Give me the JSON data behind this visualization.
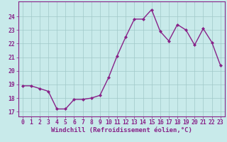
{
  "x": [
    0,
    1,
    2,
    3,
    4,
    5,
    6,
    7,
    8,
    9,
    10,
    11,
    12,
    13,
    14,
    15,
    16,
    17,
    18,
    19,
    20,
    21,
    22,
    23
  ],
  "y": [
    18.9,
    18.9,
    18.7,
    18.5,
    17.2,
    17.2,
    17.9,
    17.9,
    18.0,
    18.2,
    19.5,
    21.1,
    22.5,
    23.8,
    23.8,
    24.5,
    22.9,
    22.2,
    23.4,
    23.0,
    21.9,
    23.1,
    22.1,
    20.4
  ],
  "line_color": "#882288",
  "marker": "D",
  "markersize": 2.0,
  "linewidth": 1.0,
  "xlabel": "Windchill (Refroidissement éolien,°C)",
  "xlim": [
    -0.5,
    23.5
  ],
  "ylim": [
    16.65,
    25.1
  ],
  "yticks": [
    17,
    18,
    19,
    20,
    21,
    22,
    23,
    24
  ],
  "xticks": [
    0,
    1,
    2,
    3,
    4,
    5,
    6,
    7,
    8,
    9,
    10,
    11,
    12,
    13,
    14,
    15,
    16,
    17,
    18,
    19,
    20,
    21,
    22,
    23
  ],
  "bg_color": "#c8eaea",
  "grid_color": "#a0c8c8",
  "text_color": "#882288",
  "tick_color": "#882288",
  "axis_color": "#882288",
  "xlabel_fontsize": 6.5,
  "tick_fontsize": 5.8
}
